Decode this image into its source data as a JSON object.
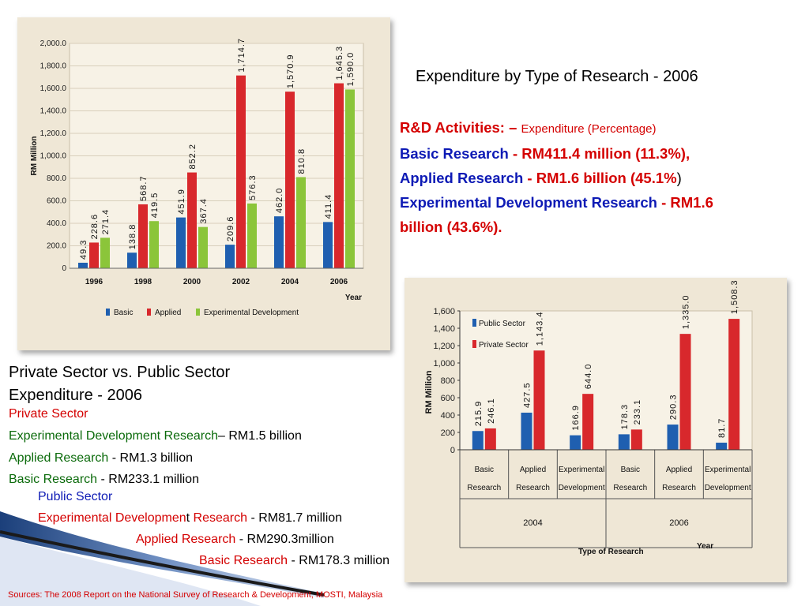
{
  "colors": {
    "blue": "#1f5fb0",
    "red": "#d8282c",
    "green": "#8bc53a",
    "accent_red": "#d40000",
    "accent_blue": "#0d1ab5",
    "accent_green": "#0a6a0a"
  },
  "title": "Expenditure by Type of Research - 2006",
  "rd_block": {
    "heading": "R&D  Activities: –",
    "heading_sub": "Expenditure (Percentage)",
    "basic_label": "Basic  Research",
    "basic_value": "- RM411.4 million (11.3%),",
    "applied_label": "Applied Research",
    "applied_value": "- RM1.6 billion (45.1%",
    "applied_close": ")",
    "exp_label": "Experimental Development Research",
    "exp_value": "- RM1.6",
    "exp_value2": "billion (43.6%)."
  },
  "section": {
    "heading_line1": "Private Sector vs. Public Sector",
    "heading_line2": "Expenditure  -  2006"
  },
  "private": {
    "title": "Private Sector",
    "exp_label": "Experimental Development Research",
    "exp_value": "– RM1.5 billion",
    "applied_label": "Applied Research",
    "applied_value": " - RM1.3 billion",
    "basic_label": "Basic Research",
    "basic_value": " - RM233.1 million"
  },
  "public": {
    "title": "Public Sector",
    "exp_label_a": "Experimental Developmen",
    "exp_label_t": "t",
    "exp_label_b": " Research",
    "exp_value": " - RM81.7 million",
    "applied_label": "Applied Research",
    "applied_value": " - RM290.3million",
    "basic_label": "Basic Research",
    "basic_value": " - RM178.3 million"
  },
  "source": "Sources: The 2008 Report on the National Survey of Research & Development, MOSTI, Malaysia",
  "chart_data": [
    {
      "type": "bar",
      "ylabel": "RM Million",
      "xlabel": "Year",
      "ylim": [
        0,
        2000
      ],
      "yticks": [
        "0",
        "200.0",
        "400.0",
        "600.0",
        "800.0",
        "1,000.0",
        "1,200.0",
        "1,400.0",
        "1,600.0",
        "1,800.0",
        "2,000.0"
      ],
      "categories": [
        "1996",
        "1998",
        "2000",
        "2002",
        "2004",
        "2006"
      ],
      "series": [
        {
          "name": "Basic",
          "values": [
            49.3,
            138.8,
            451.9,
            209.6,
            462.0,
            411.4
          ],
          "labels": [
            "49.3",
            "138.8",
            "451.9",
            "209.6",
            "462.0",
            "411.4"
          ]
        },
        {
          "name": "Applied",
          "values": [
            228.6,
            568.7,
            852.2,
            1714.7,
            1570.9,
            1645.3
          ],
          "labels": [
            "228.6",
            "568.7",
            "852.2",
            "1,714.7",
            "1,570.9",
            "1,645.3"
          ]
        },
        {
          "name": "Experimental Development",
          "values": [
            271.4,
            419.5,
            367.4,
            576.3,
            810.8,
            1590.0
          ],
          "labels": [
            "271.4",
            "419.5",
            "367.4",
            "576.3",
            "810.8",
            "1,590.0"
          ]
        }
      ],
      "legend": "bottom"
    },
    {
      "type": "bar",
      "ylabel": "RM  Million",
      "xlabel": "Type of Research",
      "xlabel2": "Year",
      "ylim": [
        0,
        1600
      ],
      "yticks": [
        "0",
        "200",
        "400",
        "600",
        "800",
        "1,000",
        "1,200",
        "1,400",
        "1,600"
      ],
      "groups": [
        {
          "year": "2004",
          "categories": [
            [
              "Basic",
              "Research"
            ],
            [
              "Applied",
              "Research"
            ],
            [
              "Experimental",
              "Development"
            ]
          ]
        },
        {
          "year": "2006",
          "categories": [
            [
              "Basic",
              "Research"
            ],
            [
              "Applied",
              "Research"
            ],
            [
              "Experimental",
              "Development"
            ]
          ]
        }
      ],
      "series": [
        {
          "name": "Public Sector",
          "values": [
            215.9,
            427.5,
            166.9,
            178.3,
            290.3,
            81.7
          ],
          "labels": [
            "215.9",
            "427.5",
            "166.9",
            "178.3",
            "290.3",
            "81.7"
          ]
        },
        {
          "name": "Private Sector",
          "values": [
            246.1,
            1143.4,
            644.0,
            233.1,
            1335.0,
            1508.3
          ],
          "labels": [
            "246.1",
            "1,143.4",
            "644.0",
            "233.1",
            "1,335.0",
            "1,508.3"
          ]
        }
      ],
      "legend": "top-left"
    }
  ]
}
